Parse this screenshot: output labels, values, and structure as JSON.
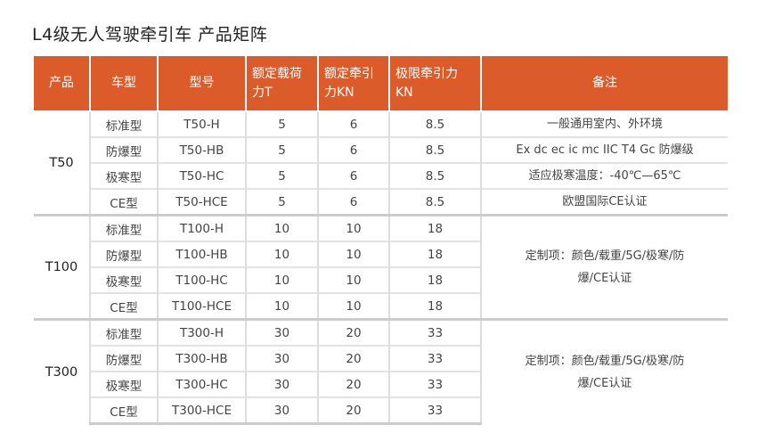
{
  "title": "L4级无人驾驶牵引车 产品矩阵",
  "colors": {
    "header_bg": "#dc5b2b",
    "header_text": "#ffffff"
  },
  "headers": [
    "产品",
    "车型",
    "型号",
    "额定载荷力T",
    "额定牵引力KN",
    "极限牵引力KN",
    "备注"
  ],
  "groups": [
    {
      "product": "T50",
      "rows": [
        {
          "type": "标准型",
          "model": "T50-H",
          "load": "5",
          "traction": "6",
          "max": "8.5",
          "note": "一般通用室内、外环境"
        },
        {
          "type": "防爆型",
          "model": "T50-HB",
          "load": "5",
          "traction": "6",
          "max": "8.5",
          "note": "Ex dc ec ic mc IIC T4 Gc 防爆级"
        },
        {
          "type": "极寒型",
          "model": "T50-HC",
          "load": "5",
          "traction": "6",
          "max": "8.5",
          "note": "适应极寒温度：-40℃—65℃"
        },
        {
          "type": "CE型",
          "model": "T50-HCE",
          "load": "5",
          "traction": "6",
          "max": "8.5",
          "note": "欧盟国际CE认证"
        }
      ]
    },
    {
      "product": "T100",
      "note": "定制项：颜色/载重/5G/极寒/防爆/CE认证",
      "rows": [
        {
          "type": "标准型",
          "model": "T100-H",
          "load": "10",
          "traction": "10",
          "max": "18"
        },
        {
          "type": "防爆型",
          "model": "T100-HB",
          "load": "10",
          "traction": "10",
          "max": "18"
        },
        {
          "type": "极寒型",
          "model": "T100-HC",
          "load": "10",
          "traction": "10",
          "max": "18"
        },
        {
          "type": "CE型",
          "model": "T100-HCE",
          "load": "10",
          "traction": "10",
          "max": "18"
        }
      ]
    },
    {
      "product": "T300",
      "note": "定制项：颜色/载重/5G/极寒/防爆/CE认证",
      "rows": [
        {
          "type": "标准型",
          "model": "T300-H",
          "load": "30",
          "traction": "20",
          "max": "33"
        },
        {
          "type": "防爆型",
          "model": "T300-HB",
          "load": "30",
          "traction": "20",
          "max": "33"
        },
        {
          "type": "极寒型",
          "model": "T300-HC",
          "load": "30",
          "traction": "20",
          "max": "33"
        },
        {
          "type": "CE型",
          "model": "T300-HCE",
          "load": "30",
          "traction": "20",
          "max": "33"
        }
      ]
    }
  ]
}
